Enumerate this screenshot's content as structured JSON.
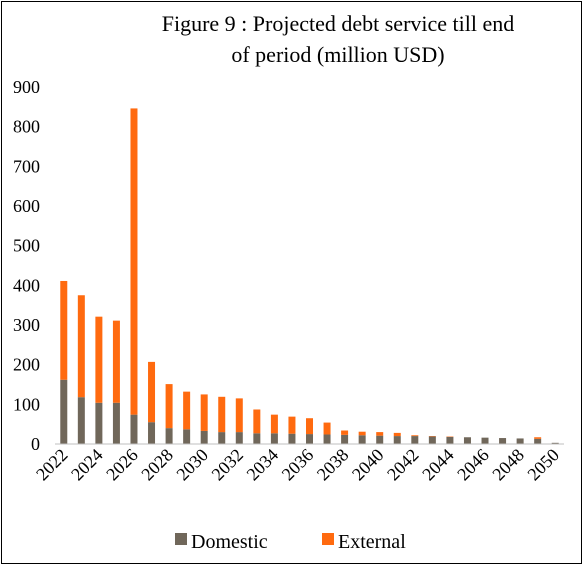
{
  "chart_data": {
    "type": "bar",
    "stacked": true,
    "title_line1": "Figure 9 : Projected debt service till end",
    "title_line2": "of period (million USD)",
    "categories": [
      "2022",
      "2023",
      "2024",
      "2025",
      "2026",
      "2027",
      "2028",
      "2029",
      "2030",
      "2031",
      "2032",
      "2033",
      "2034",
      "2035",
      "2036",
      "2037",
      "2038",
      "2039",
      "2040",
      "2041",
      "2042",
      "2043",
      "2044",
      "2045",
      "2046",
      "2047",
      "2048",
      "2049",
      "2050"
    ],
    "x_tick_labels": [
      "2022",
      "2024",
      "2026",
      "2028",
      "2030",
      "2032",
      "2034",
      "2036",
      "2038",
      "2040",
      "2042",
      "2044",
      "2046",
      "2048",
      "2050"
    ],
    "ylim": [
      0,
      900
    ],
    "y_ticks": [
      0,
      100,
      200,
      300,
      400,
      500,
      600,
      700,
      800,
      900
    ],
    "grid": false,
    "legend_position": "bottom",
    "series": [
      {
        "name": "Domestic",
        "color": "#70675a",
        "values": [
          162,
          118,
          104,
          104,
          74,
          55,
          40,
          37,
          33,
          30,
          30,
          27,
          27,
          26,
          25,
          24,
          23,
          22,
          21,
          20,
          20,
          19,
          18,
          17,
          16,
          15,
          14,
          13,
          3
        ]
      },
      {
        "name": "External",
        "color": "#ff6a0f",
        "values": [
          249,
          257,
          217,
          207,
          772,
          152,
          111,
          95,
          92,
          89,
          85,
          60,
          47,
          43,
          40,
          30,
          11,
          9,
          9,
          8,
          2,
          1,
          1,
          0,
          0,
          0,
          0,
          4,
          0
        ]
      }
    ]
  }
}
